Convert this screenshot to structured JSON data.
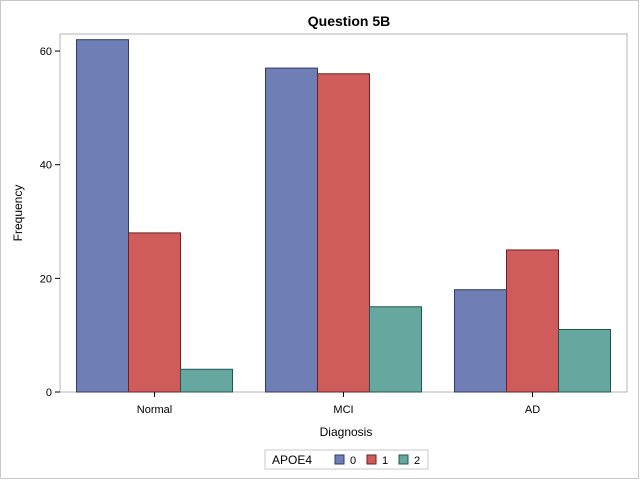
{
  "chart_data": {
    "type": "bar",
    "title": "Question 5B",
    "xlabel": "Diagnosis",
    "ylabel": "Frequency",
    "categories": [
      "Normal",
      "MCI",
      "AD"
    ],
    "ylim": [
      0,
      63
    ],
    "yticks": [
      0,
      20,
      40,
      60
    ],
    "grid": false,
    "legend": {
      "title": "APOE4",
      "placement": "bottom-center"
    },
    "series": [
      {
        "name": "0",
        "values": [
          62,
          57,
          18
        ],
        "color": "#6f7eb5",
        "edge": "#2f3a66"
      },
      {
        "name": "1",
        "values": [
          28,
          56,
          25
        ],
        "color": "#d05b5b",
        "edge": "#6e2222"
      },
      {
        "name": "2",
        "values": [
          4,
          15,
          11
        ],
        "color": "#66a8a0",
        "edge": "#1f5650"
      }
    ]
  }
}
